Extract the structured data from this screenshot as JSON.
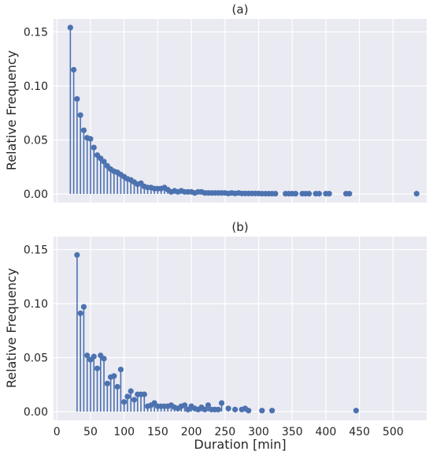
{
  "chart_data": [
    {
      "type": "stem",
      "title": "(a)",
      "xlabel": "",
      "ylabel": "Relative Frequency",
      "xlim": [
        -5,
        550
      ],
      "ylim": [
        -0.008,
        0.162
      ],
      "yticks": [
        0.0,
        0.05,
        0.1,
        0.15
      ],
      "ytick_labels": [
        "0.00",
        "0.05",
        "0.10",
        "0.15"
      ],
      "xticks": [
        0,
        50,
        100,
        150,
        200,
        250,
        300,
        350,
        400,
        450,
        500
      ],
      "show_xtick_labels": false,
      "grid": true,
      "color": "#4c72b0",
      "points": [
        [
          20,
          0.154
        ],
        [
          25,
          0.115
        ],
        [
          30,
          0.088
        ],
        [
          35,
          0.073
        ],
        [
          40,
          0.059
        ],
        [
          45,
          0.052
        ],
        [
          50,
          0.051
        ],
        [
          55,
          0.043
        ],
        [
          60,
          0.036
        ],
        [
          65,
          0.033
        ],
        [
          70,
          0.03
        ],
        [
          75,
          0.026
        ],
        [
          80,
          0.023
        ],
        [
          85,
          0.021
        ],
        [
          90,
          0.02
        ],
        [
          95,
          0.018
        ],
        [
          100,
          0.016
        ],
        [
          105,
          0.014
        ],
        [
          110,
          0.013
        ],
        [
          115,
          0.011
        ],
        [
          120,
          0.009
        ],
        [
          125,
          0.01
        ],
        [
          130,
          0.007
        ],
        [
          135,
          0.006
        ],
        [
          140,
          0.006
        ],
        [
          145,
          0.005
        ],
        [
          150,
          0.005
        ],
        [
          155,
          0.005
        ],
        [
          160,
          0.006
        ],
        [
          165,
          0.004
        ],
        [
          170,
          0.002
        ],
        [
          175,
          0.003
        ],
        [
          180,
          0.002
        ],
        [
          185,
          0.003
        ],
        [
          190,
          0.002
        ],
        [
          195,
          0.002
        ],
        [
          200,
          0.002
        ],
        [
          205,
          0.001
        ],
        [
          210,
          0.002
        ],
        [
          215,
          0.002
        ],
        [
          220,
          0.001
        ],
        [
          225,
          0.001
        ],
        [
          230,
          0.001
        ],
        [
          235,
          0.001
        ],
        [
          240,
          0.001
        ],
        [
          245,
          0.001
        ],
        [
          250,
          0.001
        ],
        [
          255,
          0.0005
        ],
        [
          260,
          0.001
        ],
        [
          265,
          0.0005
        ],
        [
          270,
          0.001
        ],
        [
          275,
          0.0005
        ],
        [
          280,
          0.0005
        ],
        [
          285,
          0.0005
        ],
        [
          290,
          0.0005
        ],
        [
          295,
          0.0005
        ],
        [
          300,
          0.0005
        ],
        [
          305,
          0.0003
        ],
        [
          310,
          0.0003
        ],
        [
          315,
          0.0003
        ],
        [
          320,
          0.0003
        ],
        [
          325,
          0.0003
        ],
        [
          340,
          0.0003
        ],
        [
          345,
          0.0003
        ],
        [
          350,
          0.0003
        ],
        [
          355,
          0.0003
        ],
        [
          365,
          0.0003
        ],
        [
          370,
          0.0003
        ],
        [
          375,
          0.0003
        ],
        [
          385,
          0.0003
        ],
        [
          390,
          0.0003
        ],
        [
          400,
          0.0003
        ],
        [
          405,
          0.0003
        ],
        [
          430,
          0.0003
        ],
        [
          435,
          0.0003
        ],
        [
          535,
          0.0003
        ]
      ]
    },
    {
      "type": "stem",
      "title": "(b)",
      "xlabel": "Duration [min]",
      "ylabel": "Relative Frequency",
      "xlim": [
        -5,
        550
      ],
      "ylim": [
        -0.008,
        0.162
      ],
      "yticks": [
        0.0,
        0.05,
        0.1,
        0.15
      ],
      "ytick_labels": [
        "0.00",
        "0.05",
        "0.10",
        "0.15"
      ],
      "xticks": [
        0,
        50,
        100,
        150,
        200,
        250,
        300,
        350,
        400,
        450,
        500
      ],
      "xtick_labels": [
        "0",
        "50",
        "100",
        "150",
        "200",
        "250",
        "300",
        "350",
        "400",
        "450",
        "500"
      ],
      "show_xtick_labels": true,
      "grid": true,
      "color": "#4c72b0",
      "points": [
        [
          30,
          0.145
        ],
        [
          35,
          0.091
        ],
        [
          40,
          0.097
        ],
        [
          45,
          0.052
        ],
        [
          50,
          0.048
        ],
        [
          55,
          0.051
        ],
        [
          60,
          0.04
        ],
        [
          65,
          0.052
        ],
        [
          70,
          0.049
        ],
        [
          75,
          0.026
        ],
        [
          80,
          0.032
        ],
        [
          85,
          0.033
        ],
        [
          90,
          0.023
        ],
        [
          95,
          0.039
        ],
        [
          100,
          0.009
        ],
        [
          105,
          0.014
        ],
        [
          110,
          0.019
        ],
        [
          115,
          0.011
        ],
        [
          120,
          0.016
        ],
        [
          125,
          0.016
        ],
        [
          130,
          0.016
        ],
        [
          135,
          0.005
        ],
        [
          140,
          0.006
        ],
        [
          145,
          0.008
        ],
        [
          150,
          0.005
        ],
        [
          155,
          0.005
        ],
        [
          160,
          0.005
        ],
        [
          165,
          0.005
        ],
        [
          170,
          0.006
        ],
        [
          175,
          0.004
        ],
        [
          180,
          0.003
        ],
        [
          185,
          0.005
        ],
        [
          190,
          0.006
        ],
        [
          195,
          0.002
        ],
        [
          200,
          0.005
        ],
        [
          205,
          0.003
        ],
        [
          210,
          0.002
        ],
        [
          215,
          0.004
        ],
        [
          220,
          0.002
        ],
        [
          225,
          0.006
        ],
        [
          230,
          0.002
        ],
        [
          235,
          0.002
        ],
        [
          240,
          0.002
        ],
        [
          245,
          0.008
        ],
        [
          255,
          0.003
        ],
        [
          265,
          0.002
        ],
        [
          275,
          0.002
        ],
        [
          280,
          0.003
        ],
        [
          285,
          0.001
        ],
        [
          305,
          0.001
        ],
        [
          320,
          0.001
        ],
        [
          445,
          0.001
        ]
      ]
    }
  ]
}
